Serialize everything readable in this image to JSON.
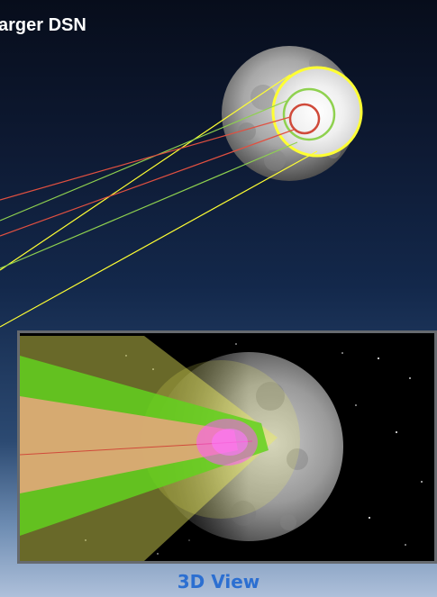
{
  "heading": "arger DSN",
  "caption": "3D View",
  "colors": {
    "yellow_beam": "#ffff33",
    "green_beam": "#8fd14f",
    "red_beam": "#e05040",
    "caption": "#2c6fd1"
  },
  "icons": {
    "moon_top": "moon-icon",
    "moon_inset": "moon-icon"
  }
}
